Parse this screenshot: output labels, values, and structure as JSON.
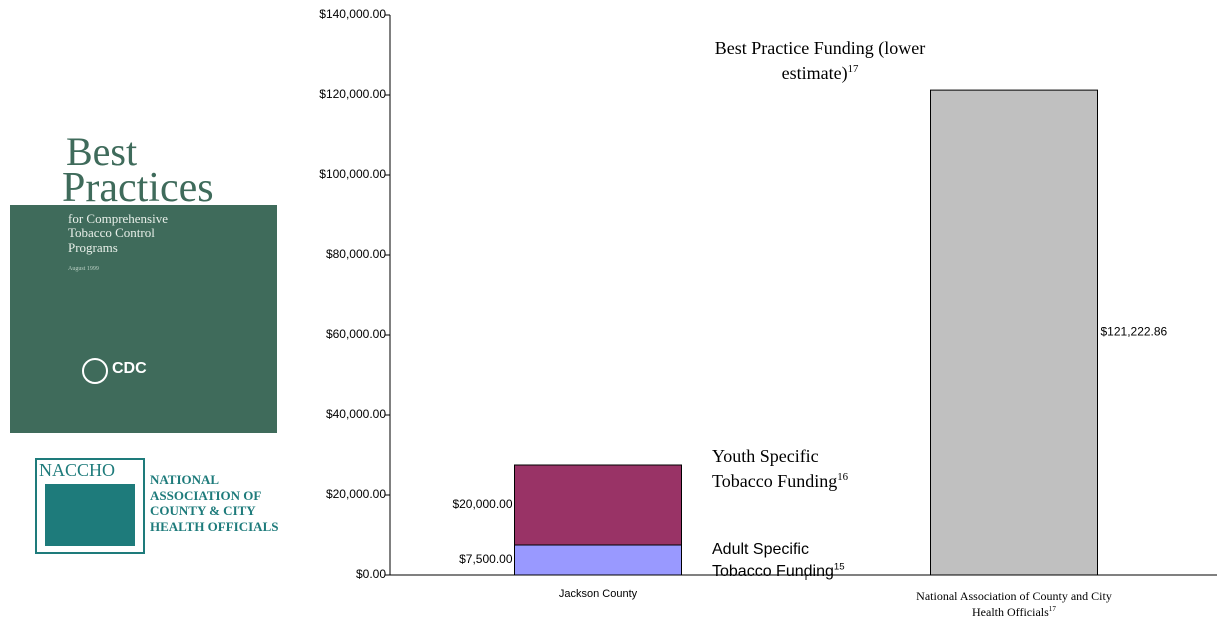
{
  "chart_data": {
    "type": "stacked_bar",
    "categories": [
      "Jackson County",
      "National Association of County and City Health Officials"
    ],
    "category_refs": [
      null,
      "17"
    ],
    "series": [
      {
        "name": "Adult Specific Tobacco Funding",
        "ref": "15",
        "color": "#9999ff",
        "values": [
          7500,
          null
        ],
        "value_labels": [
          "$7,500.00",
          null
        ]
      },
      {
        "name": "Youth Specific Tobacco Funding",
        "ref": "16",
        "color": "#993366",
        "values": [
          20000,
          null
        ],
        "value_labels": [
          "$20,000.00",
          null
        ]
      },
      {
        "name": "Best Practice Funding (lower estimate)",
        "ref": "17",
        "color": "#c0c0c0",
        "values": [
          null,
          121222.86
        ],
        "value_labels": [
          null,
          "$121,222.86"
        ]
      }
    ],
    "ylim": [
      0,
      140000
    ],
    "yticks": [
      {
        "value": 0,
        "label": "$0.00"
      },
      {
        "value": 20000,
        "label": "$20,000.00"
      },
      {
        "value": 40000,
        "label": "$40,000.00"
      },
      {
        "value": 60000,
        "label": "$60,000.00"
      },
      {
        "value": 80000,
        "label": "$80,000.00"
      },
      {
        "value": 100000,
        "label": "$100,000.00"
      },
      {
        "value": 120000,
        "label": "$120,000.00"
      },
      {
        "value": 140000,
        "label": "$140,000.00"
      }
    ],
    "grid": false
  },
  "cover": {
    "title1": "Best",
    "title2": "Practices",
    "subtitle": "for Comprehensive Tobacco Control Programs",
    "date": "August 1999",
    "agency": "CDC"
  },
  "logo": {
    "acronym": "NACCHO",
    "name": "NATIONAL ASSOCIATION OF COUNTY & CITY HEALTH OFFICIALS"
  }
}
